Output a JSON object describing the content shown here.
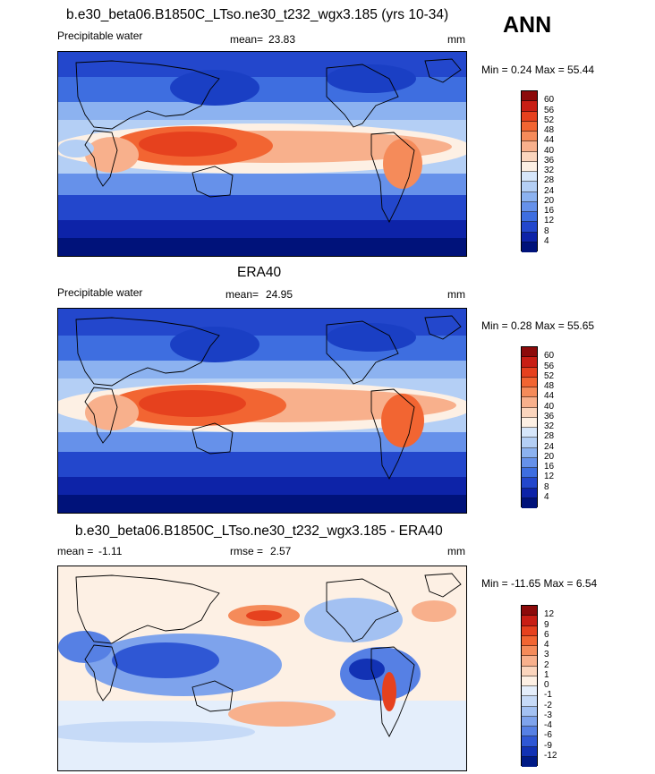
{
  "season": "ANN",
  "panels": [
    {
      "id": "model",
      "title": "b.e30_beta06.B1850C_LTso.ne30_t232_wgx3.185 (yrs 10-34)",
      "variable": "Precipitable water",
      "stat_label": "mean=",
      "stat_value": "23.83",
      "units": "mm",
      "minmax": "Min =   0.24 Max =  55.44",
      "colorbar": {
        "labels": [
          "60",
          "56",
          "52",
          "48",
          "44",
          "40",
          "36",
          "32",
          "28",
          "24",
          "20",
          "16",
          "12",
          "8",
          "4"
        ],
        "colors": [
          "#8c0a0a",
          "#c81e14",
          "#e6411e",
          "#f26532",
          "#f58b5a",
          "#f8b08c",
          "#fbd5bd",
          "#fdf0e4",
          "#d6e6fa",
          "#b4cff5",
          "#8cb2f0",
          "#6691ea",
          "#3e6ee0",
          "#2347cc",
          "#0d23a8",
          "#00127a"
        ]
      }
    },
    {
      "id": "obs",
      "title": "ERA40",
      "variable": "Precipitable water",
      "stat_label": "mean=",
      "stat_value": "24.95",
      "units": "mm",
      "minmax": "Min =   0.28 Max =  55.65",
      "colorbar": {
        "labels": [
          "60",
          "56",
          "52",
          "48",
          "44",
          "40",
          "36",
          "32",
          "28",
          "24",
          "20",
          "16",
          "12",
          "8",
          "4"
        ],
        "colors": [
          "#8c0a0a",
          "#c81e14",
          "#e6411e",
          "#f26532",
          "#f58b5a",
          "#f8b08c",
          "#fbd5bd",
          "#fdf0e4",
          "#d6e6fa",
          "#b4cff5",
          "#8cb2f0",
          "#6691ea",
          "#3e6ee0",
          "#2347cc",
          "#0d23a8",
          "#00127a"
        ]
      }
    },
    {
      "id": "diff",
      "title": "b.e30_beta06.B1850C_LTso.ne30_t232_wgx3.185 - ERA40",
      "variable": "",
      "stat_label": "mean =",
      "stat_value": "-1.11",
      "rmse_label": "rmse =",
      "rmse_value": "2.57",
      "units": "mm",
      "minmax": "Min = -11.65 Max =   6.54",
      "colorbar": {
        "labels": [
          "12",
          "9",
          "6",
          "4",
          "3",
          "2",
          "1",
          "0",
          "-1",
          "-2",
          "-3",
          "-4",
          "-6",
          "-9",
          "-12"
        ],
        "colors": [
          "#8c0a0a",
          "#c81e14",
          "#e6411e",
          "#f26532",
          "#f58b5a",
          "#f8b08c",
          "#fbd5bd",
          "#fdf0e4",
          "#e4eefb",
          "#c6daf7",
          "#a3c1f2",
          "#7ea3ec",
          "#5680e4",
          "#2f57d4",
          "#1232b4",
          "#001a86"
        ]
      }
    }
  ]
}
